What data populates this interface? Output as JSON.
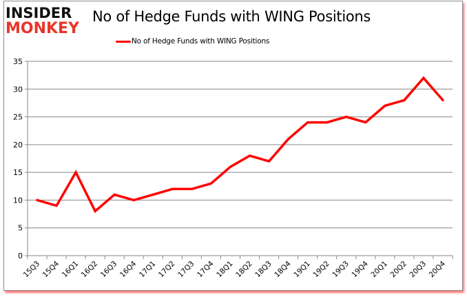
{
  "header": {
    "logo_line1": "INSIDER",
    "logo_line2": "MONKEY",
    "title": "No of Hedge Funds with WING Positions"
  },
  "legend": {
    "label": "No of Hedge Funds with WING Positions",
    "color": "#ff0000"
  },
  "colors": {
    "line": "#ff0000",
    "grid": "#868686",
    "logo_dark": "#111111",
    "logo_red": "#e8352a",
    "shadow": "#ff0000"
  },
  "chart_data": {
    "type": "line",
    "title": "No of Hedge Funds with WING Positions",
    "xlabel": "",
    "ylabel": "",
    "ylim": [
      0,
      35
    ],
    "yticks": [
      0,
      5,
      10,
      15,
      20,
      25,
      30,
      35
    ],
    "grid": true,
    "legend_position": "top",
    "categories": [
      "15Q3",
      "15Q4",
      "16Q1",
      "16Q2",
      "16Q3",
      "16Q4",
      "17Q1",
      "17Q2",
      "17Q3",
      "17Q4",
      "18Q1",
      "18Q2",
      "18Q3",
      "18Q4",
      "19Q1",
      "19Q2",
      "19Q3",
      "19Q4",
      "20Q1",
      "20Q2",
      "20Q3",
      "20Q4"
    ],
    "series": [
      {
        "name": "No of Hedge Funds with WING Positions",
        "values": [
          10,
          9,
          15,
          8,
          11,
          10,
          11,
          12,
          12,
          13,
          16,
          18,
          17,
          21,
          24,
          24,
          25,
          24,
          27,
          28,
          32,
          28
        ]
      }
    ]
  }
}
